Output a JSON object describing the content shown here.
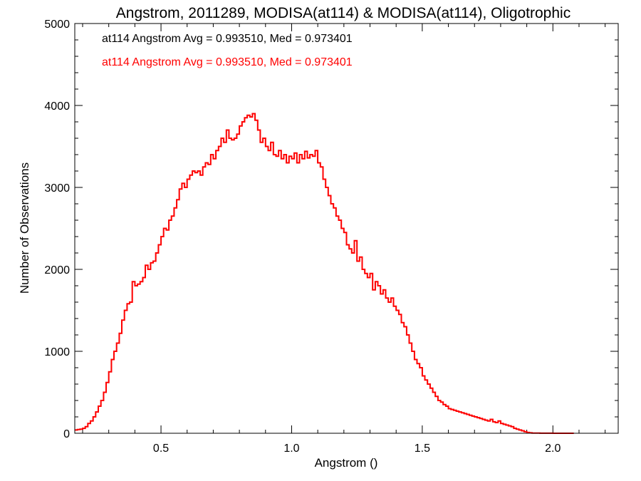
{
  "chart_data": {
    "type": "histogram",
    "title": "Angstrom, 2011289, MODISA(at114) & MODISA(at114), Oligotrophic",
    "xlabel": "Angstrom ()",
    "ylabel": "Number of Observations",
    "xlim": [
      0.17,
      2.25
    ],
    "ylim": [
      0,
      5000
    ],
    "xticks": [
      0.5,
      1.0,
      1.5,
      2.0
    ],
    "xtick_labels": [
      "0.5",
      "1.0",
      "1.5",
      "2.0"
    ],
    "yticks": [
      0,
      1000,
      2000,
      3000,
      4000,
      5000
    ],
    "ytick_labels": [
      "0",
      "1000",
      "2000",
      "3000",
      "4000",
      "5000"
    ],
    "bin_width": 0.01,
    "x": [
      0.17,
      0.18,
      0.19,
      0.2,
      0.21,
      0.22,
      0.23,
      0.24,
      0.25,
      0.26,
      0.27,
      0.28,
      0.29,
      0.3,
      0.31,
      0.32,
      0.33,
      0.34,
      0.35,
      0.36,
      0.37,
      0.38,
      0.39,
      0.4,
      0.41,
      0.42,
      0.43,
      0.44,
      0.45,
      0.46,
      0.47,
      0.48,
      0.49,
      0.5,
      0.51,
      0.52,
      0.53,
      0.54,
      0.55,
      0.56,
      0.57,
      0.58,
      0.59,
      0.6,
      0.61,
      0.62,
      0.63,
      0.64,
      0.65,
      0.66,
      0.67,
      0.68,
      0.69,
      0.7,
      0.71,
      0.72,
      0.73,
      0.74,
      0.75,
      0.76,
      0.77,
      0.78,
      0.79,
      0.8,
      0.81,
      0.82,
      0.83,
      0.84,
      0.85,
      0.86,
      0.87,
      0.88,
      0.89,
      0.9,
      0.91,
      0.92,
      0.93,
      0.94,
      0.95,
      0.96,
      0.97,
      0.98,
      0.99,
      1.0,
      1.01,
      1.02,
      1.03,
      1.04,
      1.05,
      1.06,
      1.07,
      1.08,
      1.09,
      1.1,
      1.11,
      1.12,
      1.13,
      1.14,
      1.15,
      1.16,
      1.17,
      1.18,
      1.19,
      1.2,
      1.21,
      1.22,
      1.23,
      1.24,
      1.25,
      1.26,
      1.27,
      1.28,
      1.29,
      1.3,
      1.31,
      1.32,
      1.33,
      1.34,
      1.35,
      1.36,
      1.37,
      1.38,
      1.39,
      1.4,
      1.41,
      1.42,
      1.43,
      1.44,
      1.45,
      1.46,
      1.47,
      1.48,
      1.49,
      1.5,
      1.51,
      1.52,
      1.53,
      1.54,
      1.55,
      1.56,
      1.57,
      1.58,
      1.59,
      1.6,
      1.61,
      1.62,
      1.63,
      1.64,
      1.65,
      1.66,
      1.67,
      1.68,
      1.69,
      1.7,
      1.71,
      1.72,
      1.73,
      1.74,
      1.75,
      1.76,
      1.77,
      1.78,
      1.79,
      1.8,
      1.81,
      1.82,
      1.83,
      1.84,
      1.85,
      1.86,
      1.87,
      1.88,
      1.89,
      1.9,
      1.91,
      1.92,
      1.93,
      1.94,
      1.95,
      1.96,
      1.97,
      1.98,
      1.99,
      2.0,
      2.01,
      2.02,
      2.03,
      2.04,
      2.05,
      2.06,
      2.07,
      2.08,
      2.09,
      2.1,
      2.11,
      2.12,
      2.13,
      2.14,
      2.15,
      2.16,
      2.17,
      2.18,
      2.19,
      2.2,
      2.21,
      2.22,
      2.23,
      2.24
    ],
    "series": [
      {
        "color": "#000000",
        "values": [
          40,
          45,
          50,
          60,
          80,
          120,
          150,
          200,
          260,
          330,
          400,
          500,
          620,
          750,
          900,
          1000,
          1100,
          1220,
          1380,
          1500,
          1580,
          1600,
          1850,
          1800,
          1820,
          1850,
          1900,
          2050,
          2000,
          2080,
          2100,
          2200,
          2300,
          2400,
          2500,
          2480,
          2600,
          2650,
          2750,
          2850,
          2980,
          3050,
          3000,
          3100,
          3150,
          3200,
          3180,
          3200,
          3150,
          3250,
          3300,
          3280,
          3400,
          3350,
          3450,
          3500,
          3600,
          3550,
          3700,
          3600,
          3580,
          3600,
          3650,
          3750,
          3800,
          3850,
          3880,
          3860,
          3900,
          3820,
          3700,
          3550,
          3600,
          3500,
          3450,
          3550,
          3400,
          3380,
          3450,
          3350,
          3400,
          3300,
          3380,
          3350,
          3420,
          3300,
          3400,
          3350,
          3440,
          3360,
          3400,
          3380,
          3450,
          3300,
          3250,
          3100,
          3000,
          2900,
          2800,
          2750,
          2650,
          2600,
          2500,
          2450,
          2300,
          2250,
          2200,
          2350,
          2100,
          2150,
          2000,
          1950,
          1900,
          1950,
          1750,
          1850,
          1800,
          1700,
          1750,
          1650,
          1600,
          1650,
          1550,
          1500,
          1450,
          1350,
          1300,
          1200,
          1100,
          1000,
          900,
          850,
          800,
          700,
          650,
          600,
          550,
          500,
          450,
          400,
          380,
          350,
          330,
          300,
          290,
          280,
          270,
          260,
          250,
          240,
          230,
          220,
          210,
          200,
          190,
          180,
          170,
          160,
          150,
          170,
          140,
          130,
          150,
          120,
          110,
          100,
          90,
          80,
          60,
          50,
          40,
          30,
          20,
          10,
          5,
          3,
          2,
          2,
          1,
          1,
          1,
          1,
          1,
          0,
          0,
          0,
          0,
          0,
          0,
          0,
          0
        ]
      },
      {
        "color": "#ff0000",
        "values": [
          40,
          45,
          50,
          60,
          80,
          120,
          150,
          200,
          260,
          330,
          400,
          500,
          620,
          750,
          900,
          1000,
          1100,
          1220,
          1380,
          1500,
          1580,
          1600,
          1850,
          1800,
          1820,
          1850,
          1900,
          2050,
          2000,
          2080,
          2100,
          2200,
          2300,
          2400,
          2500,
          2480,
          2600,
          2650,
          2750,
          2850,
          2980,
          3050,
          3000,
          3100,
          3150,
          3200,
          3180,
          3200,
          3150,
          3250,
          3300,
          3280,
          3400,
          3350,
          3450,
          3500,
          3600,
          3550,
          3700,
          3600,
          3580,
          3600,
          3650,
          3750,
          3800,
          3850,
          3880,
          3860,
          3900,
          3820,
          3700,
          3550,
          3600,
          3500,
          3450,
          3550,
          3400,
          3380,
          3450,
          3350,
          3400,
          3300,
          3380,
          3350,
          3420,
          3300,
          3400,
          3350,
          3440,
          3360,
          3400,
          3380,
          3450,
          3300,
          3250,
          3100,
          3000,
          2900,
          2800,
          2750,
          2650,
          2600,
          2500,
          2450,
          2300,
          2250,
          2200,
          2350,
          2100,
          2150,
          2000,
          1950,
          1900,
          1950,
          1750,
          1850,
          1800,
          1700,
          1750,
          1650,
          1600,
          1650,
          1550,
          1500,
          1450,
          1350,
          1300,
          1200,
          1100,
          1000,
          900,
          850,
          800,
          700,
          650,
          600,
          550,
          500,
          450,
          400,
          380,
          350,
          330,
          300,
          290,
          280,
          270,
          260,
          250,
          240,
          230,
          220,
          210,
          200,
          190,
          180,
          170,
          160,
          150,
          170,
          140,
          130,
          150,
          120,
          110,
          100,
          90,
          80,
          60,
          50,
          40,
          30,
          20,
          10,
          5,
          3,
          2,
          2,
          1,
          1,
          1,
          1,
          1,
          0,
          0,
          0,
          0,
          0,
          0,
          0,
          0
        ]
      }
    ],
    "annotations": [
      {
        "text": "at114 Angstrom Avg = 0.993510, Med = 0.973401",
        "color": "#000000"
      },
      {
        "text": "at114 Angstrom Avg = 0.993510, Med = 0.973401",
        "color": "#ff0000"
      }
    ],
    "grid": false
  }
}
